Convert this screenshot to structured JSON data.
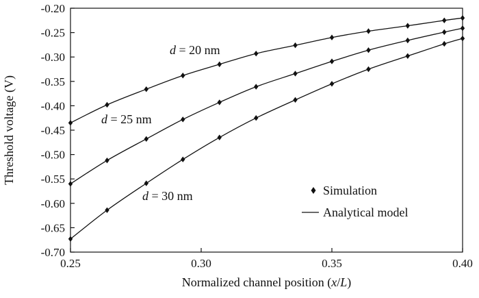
{
  "chart_data": {
    "type": "line",
    "title": "",
    "xlabel": "Normalized channel position (x/L)",
    "xlabel_plain": "Normalized channel position (",
    "xlabel_var_x": "x",
    "xlabel_slash": "/",
    "xlabel_var_L": "L",
    "xlabel_close": ")",
    "ylabel": "Threshold voltage (V)",
    "xlim": [
      0.25,
      0.4
    ],
    "ylim": [
      -0.7,
      -0.2
    ],
    "grid": false,
    "legend_position": "bottom-right",
    "x_ticks": [
      {
        "value": 0.25,
        "label": "0.25"
      },
      {
        "value": 0.3,
        "label": "0.30"
      },
      {
        "value": 0.35,
        "label": "0.35"
      },
      {
        "value": 0.4,
        "label": "0.40"
      }
    ],
    "y_ticks": [
      {
        "value": -0.2,
        "label": "-0.20"
      },
      {
        "value": -0.25,
        "label": "-0.25"
      },
      {
        "value": -0.3,
        "label": "-0.30"
      },
      {
        "value": -0.35,
        "label": "-0.35"
      },
      {
        "value": -0.4,
        "label": "-0.40"
      },
      {
        "value": -0.45,
        "label": "-0.45"
      },
      {
        "value": -0.5,
        "label": "-0.50"
      },
      {
        "value": -0.55,
        "label": "-0.55"
      },
      {
        "value": -0.6,
        "label": "-0.60"
      },
      {
        "value": -0.65,
        "label": "-0.65"
      },
      {
        "value": -0.7,
        "label": "-0.70"
      }
    ],
    "legend": {
      "simulation_label": "Simulation",
      "model_label": "Analytical model"
    },
    "series": [
      {
        "name": "d = 20 nm",
        "label_var": "d",
        "label_rest": " = 20 nm",
        "x": [
          0.25,
          0.264,
          0.279,
          0.293,
          0.307,
          0.321,
          0.336,
          0.35,
          0.364,
          0.379,
          0.393,
          0.4
        ],
        "y": [
          -0.435,
          -0.398,
          -0.366,
          -0.338,
          -0.315,
          -0.293,
          -0.276,
          -0.26,
          -0.247,
          -0.236,
          -0.225,
          -0.22
        ]
      },
      {
        "name": "d = 25 nm",
        "label_var": "d",
        "label_rest": " = 25 nm",
        "x": [
          0.25,
          0.264,
          0.279,
          0.293,
          0.307,
          0.321,
          0.336,
          0.35,
          0.364,
          0.379,
          0.393,
          0.4
        ],
        "y": [
          -0.56,
          -0.512,
          -0.468,
          -0.428,
          -0.393,
          -0.361,
          -0.334,
          -0.309,
          -0.286,
          -0.266,
          -0.249,
          -0.241
        ]
      },
      {
        "name": "d = 30 nm",
        "label_var": "d",
        "label_rest": " = 30 nm",
        "x": [
          0.25,
          0.264,
          0.279,
          0.293,
          0.307,
          0.321,
          0.336,
          0.35,
          0.364,
          0.379,
          0.393,
          0.4
        ],
        "y": [
          -0.673,
          -0.614,
          -0.559,
          -0.51,
          -0.465,
          -0.425,
          -0.388,
          -0.355,
          -0.325,
          -0.298,
          -0.273,
          -0.262
        ]
      }
    ]
  }
}
